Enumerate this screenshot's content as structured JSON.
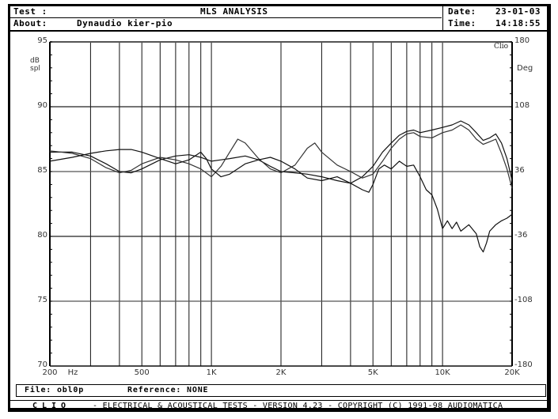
{
  "header": {
    "test_label": "Test :",
    "test_title": "MLS ANALYSIS",
    "about_label": "About:",
    "about_value": "Dynaudio kier-pio",
    "date_label": "Date:",
    "date_value": "23-01-03",
    "time_label": "Time:",
    "time_value": "14:18:55"
  },
  "axes": {
    "left_unit_line1": "dB",
    "left_unit_line2": "spl",
    "right_unit": "Deg",
    "brand_mark": "Clio",
    "left_ticks": [
      "95",
      "90",
      "85",
      "80",
      "75",
      "70"
    ],
    "right_ticks": [
      "180",
      "108",
      "36",
      "-36",
      "-108",
      "-180"
    ],
    "x_ticks": [
      {
        "label": "200",
        "hz": 200
      },
      {
        "label": "500",
        "hz": 500
      },
      {
        "label": "1K",
        "hz": 1000
      },
      {
        "label": "2K",
        "hz": 2000
      },
      {
        "label": "5K",
        "hz": 5000
      },
      {
        "label": "10K",
        "hz": 10000
      },
      {
        "label": "20K",
        "hz": 20000
      }
    ],
    "x_unit": "Hz"
  },
  "file_bar": {
    "file_label": "File:",
    "file_value": "obl0p",
    "reference_label": "Reference:",
    "reference_value": "NONE"
  },
  "footer": {
    "brand": "CLIO",
    "text": "-  ELECTRICAL & ACOUSTICAL TESTS  -  VERSION 4.23  -  COPYRIGHT (C) 1991-98 AUDIOMATICA"
  },
  "chart_data": {
    "type": "line",
    "title": "MLS ANALYSIS",
    "subtitle": "Dynaudio kier-pio",
    "xlabel": "Hz",
    "ylabel": "dB spl",
    "y2label": "Deg",
    "xscale": "log",
    "xlim": [
      200,
      20000
    ],
    "ylim": [
      70,
      95
    ],
    "y2lim": [
      -180,
      180
    ],
    "grid": true,
    "x_gridlines": [
      200,
      300,
      400,
      500,
      600,
      700,
      800,
      900,
      1000,
      2000,
      3000,
      4000,
      5000,
      6000,
      7000,
      8000,
      9000,
      10000,
      20000
    ],
    "y_gridlines": [
      70,
      75,
      80,
      85,
      90,
      95
    ],
    "series": [
      {
        "name": "curve-1",
        "points": [
          [
            200,
            86.5
          ],
          [
            250,
            86.5
          ],
          [
            300,
            86.2
          ],
          [
            350,
            85.6
          ],
          [
            400,
            85.0
          ],
          [
            450,
            84.9
          ],
          [
            500,
            85.2
          ],
          [
            600,
            85.9
          ],
          [
            700,
            86.2
          ],
          [
            800,
            86.3
          ],
          [
            900,
            86.1
          ],
          [
            1000,
            85.8
          ],
          [
            1100,
            85.9
          ],
          [
            1200,
            86.0
          ],
          [
            1400,
            86.2
          ],
          [
            1600,
            85.9
          ],
          [
            1800,
            85.4
          ],
          [
            2000,
            85.0
          ],
          [
            2300,
            84.9
          ],
          [
            2600,
            84.8
          ],
          [
            3000,
            84.6
          ],
          [
            3500,
            84.3
          ],
          [
            4000,
            84.1
          ],
          [
            4500,
            84.6
          ],
          [
            5000,
            85.4
          ],
          [
            5500,
            86.5
          ],
          [
            6000,
            87.2
          ],
          [
            6500,
            87.8
          ],
          [
            7000,
            88.1
          ],
          [
            7500,
            88.2
          ],
          [
            8000,
            88.0
          ],
          [
            9000,
            88.2
          ],
          [
            10000,
            88.4
          ],
          [
            11000,
            88.6
          ],
          [
            12000,
            88.9
          ],
          [
            13000,
            88.6
          ],
          [
            14000,
            88.0
          ],
          [
            15000,
            87.4
          ],
          [
            16000,
            87.6
          ],
          [
            17000,
            87.9
          ],
          [
            18000,
            87.2
          ],
          [
            19000,
            86.0
          ],
          [
            20000,
            84.3
          ]
        ]
      },
      {
        "name": "curve-2",
        "points": [
          [
            200,
            86.6
          ],
          [
            250,
            86.4
          ],
          [
            300,
            86.0
          ],
          [
            350,
            85.3
          ],
          [
            400,
            84.9
          ],
          [
            450,
            85.1
          ],
          [
            500,
            85.6
          ],
          [
            600,
            86.1
          ],
          [
            700,
            85.9
          ],
          [
            800,
            85.6
          ],
          [
            900,
            85.2
          ],
          [
            1000,
            84.6
          ],
          [
            1100,
            85.4
          ],
          [
            1200,
            86.5
          ],
          [
            1300,
            87.5
          ],
          [
            1400,
            87.2
          ],
          [
            1600,
            86.0
          ],
          [
            1800,
            85.2
          ],
          [
            2000,
            84.9
          ],
          [
            2300,
            85.5
          ],
          [
            2600,
            86.8
          ],
          [
            2800,
            87.2
          ],
          [
            3000,
            86.5
          ],
          [
            3500,
            85.5
          ],
          [
            4000,
            85.0
          ],
          [
            4500,
            84.5
          ],
          [
            5000,
            84.8
          ],
          [
            5500,
            85.8
          ],
          [
            6000,
            86.8
          ],
          [
            6500,
            87.5
          ],
          [
            7000,
            87.9
          ],
          [
            7500,
            88.0
          ],
          [
            8000,
            87.7
          ],
          [
            9000,
            87.6
          ],
          [
            10000,
            88.0
          ],
          [
            11000,
            88.2
          ],
          [
            12000,
            88.6
          ],
          [
            13000,
            88.2
          ],
          [
            14000,
            87.5
          ],
          [
            15000,
            87.1
          ],
          [
            16000,
            87.3
          ],
          [
            17000,
            87.5
          ],
          [
            18000,
            86.4
          ],
          [
            19000,
            85.2
          ],
          [
            20000,
            83.7
          ]
        ]
      },
      {
        "name": "curve-3",
        "points": [
          [
            200,
            85.8
          ],
          [
            250,
            86.1
          ],
          [
            300,
            86.4
          ],
          [
            350,
            86.6
          ],
          [
            400,
            86.7
          ],
          [
            450,
            86.7
          ],
          [
            500,
            86.5
          ],
          [
            600,
            86.0
          ],
          [
            700,
            85.6
          ],
          [
            800,
            85.9
          ],
          [
            900,
            86.5
          ],
          [
            950,
            86.0
          ],
          [
            1000,
            85.2
          ],
          [
            1100,
            84.6
          ],
          [
            1200,
            84.8
          ],
          [
            1400,
            85.6
          ],
          [
            1600,
            85.9
          ],
          [
            1800,
            86.1
          ],
          [
            2000,
            85.8
          ],
          [
            2300,
            85.2
          ],
          [
            2600,
            84.5
          ],
          [
            3000,
            84.3
          ],
          [
            3500,
            84.6
          ],
          [
            4000,
            84.1
          ],
          [
            4500,
            83.6
          ],
          [
            4800,
            83.4
          ],
          [
            5000,
            84.0
          ],
          [
            5300,
            85.2
          ],
          [
            5600,
            85.5
          ],
          [
            6000,
            85.2
          ],
          [
            6500,
            85.8
          ],
          [
            7000,
            85.4
          ],
          [
            7500,
            85.5
          ],
          [
            8000,
            84.6
          ],
          [
            8500,
            83.6
          ],
          [
            9000,
            83.2
          ],
          [
            9500,
            82.1
          ],
          [
            10000,
            80.6
          ],
          [
            10500,
            81.2
          ],
          [
            11000,
            80.6
          ],
          [
            11500,
            81.1
          ],
          [
            12000,
            80.4
          ],
          [
            13000,
            80.9
          ],
          [
            14000,
            80.2
          ],
          [
            14500,
            79.2
          ],
          [
            15000,
            78.8
          ],
          [
            15500,
            79.5
          ],
          [
            16000,
            80.4
          ],
          [
            17000,
            80.9
          ],
          [
            18000,
            81.2
          ],
          [
            19000,
            81.4
          ],
          [
            20000,
            81.7
          ]
        ]
      }
    ]
  }
}
